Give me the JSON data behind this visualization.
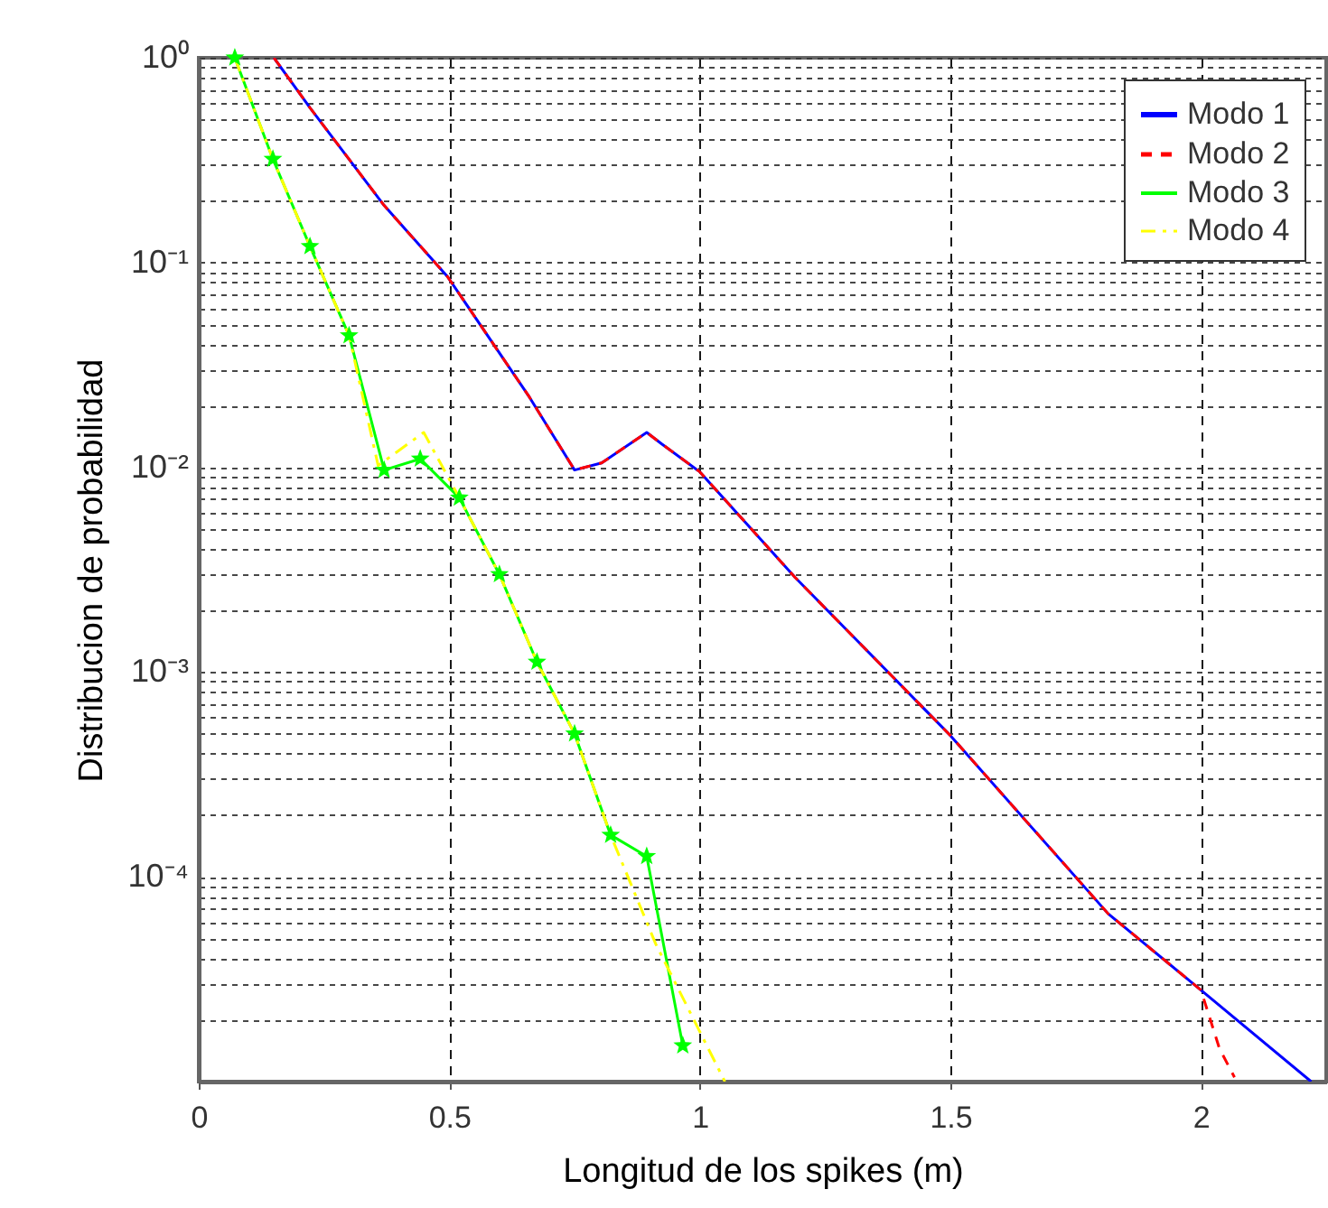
{
  "chart_data": {
    "type": "line",
    "xlabel": "Longitud de los spikes (m)",
    "ylabel": "Distribucion de probabilidad",
    "log": "y",
    "grid": true,
    "legend": "top right",
    "xlim": [
      0,
      2.25
    ],
    "xticks": [
      0,
      0.5,
      1,
      1.5,
      2
    ],
    "ylim": [
      1e-05,
      1
    ],
    "yticks": [
      {
        "value": 1e-05,
        "label": null
      },
      {
        "value": 2e-05,
        "label": null
      },
      {
        "value": 3e-05,
        "label": null
      },
      {
        "value": 4e-05,
        "label": null
      },
      {
        "value": 5e-05,
        "label": null
      },
      {
        "value": 6e-05,
        "label": null
      },
      {
        "value": 7e-05,
        "label": null
      },
      {
        "value": 8e-05,
        "label": null
      },
      {
        "value": 9e-05,
        "label": null
      },
      {
        "value": 0.0001,
        "label": "10⁻⁴"
      },
      {
        "value": 0.0002,
        "label": null
      },
      {
        "value": 0.0003,
        "label": null
      },
      {
        "value": 0.0004,
        "label": null
      },
      {
        "value": 0.0005,
        "label": null
      },
      {
        "value": 0.0006,
        "label": null
      },
      {
        "value": 0.0007,
        "label": null
      },
      {
        "value": 0.0008,
        "label": null
      },
      {
        "value": 0.0009,
        "label": null
      },
      {
        "value": 0.001,
        "label": "10⁻³"
      },
      {
        "value": 0.002,
        "label": null
      },
      {
        "value": 0.003,
        "label": null
      },
      {
        "value": 0.004,
        "label": null
      },
      {
        "value": 0.005,
        "label": null
      },
      {
        "value": 0.006,
        "label": null
      },
      {
        "value": 0.007,
        "label": null
      },
      {
        "value": 0.008,
        "label": null
      },
      {
        "value": 0.009,
        "label": null
      },
      {
        "value": 0.01,
        "label": "10⁻²"
      },
      {
        "value": 0.02,
        "label": null
      },
      {
        "value": 0.03,
        "label": null
      },
      {
        "value": 0.04,
        "label": null
      },
      {
        "value": 0.05,
        "label": null
      },
      {
        "value": 0.06,
        "label": null
      },
      {
        "value": 0.07,
        "label": null
      },
      {
        "value": 0.08,
        "label": null
      },
      {
        "value": 0.09,
        "label": null
      },
      {
        "value": 0.1,
        "label": "10⁻¹"
      },
      {
        "value": 0.2,
        "label": null
      },
      {
        "value": 0.3,
        "label": null
      },
      {
        "value": 0.4,
        "label": null
      },
      {
        "value": 0.5,
        "label": null
      },
      {
        "value": 0.6,
        "label": null
      },
      {
        "value": 0.7,
        "label": null
      },
      {
        "value": 0.8,
        "label": null
      },
      {
        "value": 0.9,
        "label": null
      },
      {
        "value": 1,
        "label": "10⁰"
      }
    ],
    "series": [
      {
        "name": "Modo 1",
        "color": "#0000ff",
        "line_style": "solid",
        "x": [
          0.15,
          0.222,
          0.37,
          0.497,
          0.66,
          0.75,
          0.804,
          0.894,
          0.924,
          1.0,
          1.19,
          1.5,
          1.815,
          2.0,
          2.22
        ],
        "values": [
          1,
          0.57,
          0.19,
          0.085,
          0.022,
          0.0097,
          0.0105,
          0.0148,
          0.013,
          0.0095,
          0.0029,
          0.00049,
          6.6e-05,
          2.8e-05,
          1e-05
        ]
      },
      {
        "name": "Modo 2",
        "color": "#ff0000",
        "line_style": "dashed",
        "x": [
          0.15,
          0.222,
          0.37,
          0.497,
          0.66,
          0.75,
          0.804,
          0.894,
          0.924,
          1.0,
          1.19,
          1.5,
          1.815,
          2.0,
          2.037,
          2.067
        ],
        "values": [
          1,
          0.57,
          0.19,
          0.085,
          0.022,
          0.0097,
          0.0105,
          0.0148,
          0.013,
          0.0095,
          0.0029,
          0.00049,
          6.6e-05,
          2.8e-05,
          1.45e-05,
          1.05e-05
        ]
      },
      {
        "name": "Modo 3",
        "color": "#00ff00",
        "line_style": "solid",
        "marker": "star",
        "x": [
          0.072,
          0.148,
          0.222,
          0.3,
          0.37,
          0.442,
          0.52,
          0.6,
          0.675,
          0.75,
          0.822,
          0.894,
          0.966
        ],
        "values": [
          1,
          0.32,
          0.12,
          0.044,
          0.0097,
          0.011,
          0.0071,
          0.003,
          0.00112,
          0.0005,
          0.00016,
          0.000126,
          1.5e-05
        ]
      },
      {
        "name": "Modo 4",
        "color": "#ffff00",
        "line_style": "dashdot",
        "x": [
          0.072,
          0.148,
          0.222,
          0.3,
          0.358,
          0.449,
          0.52,
          0.6,
          0.675,
          0.75,
          0.822,
          0.912,
          1.05
        ],
        "values": [
          1,
          0.32,
          0.12,
          0.044,
          0.0102,
          0.0148,
          0.0071,
          0.003,
          0.00112,
          0.0005,
          0.00016,
          4.7e-05,
          1e-05
        ]
      }
    ]
  }
}
